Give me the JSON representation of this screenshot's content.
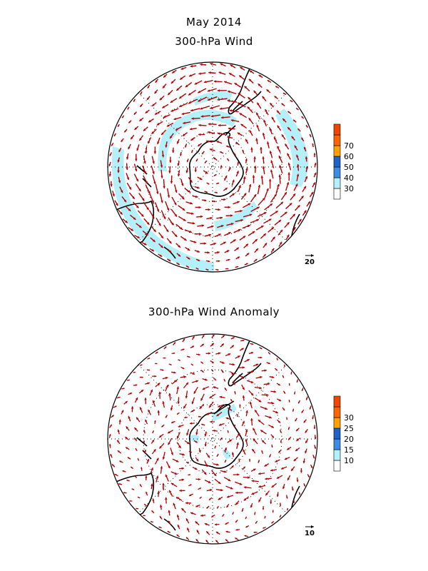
{
  "title": "May 2014",
  "top_map": {
    "subtitle": "300-hPa Wind",
    "reference_vector": "20",
    "legend": {
      "ticks": [
        "30",
        "40",
        "50",
        "60",
        "70"
      ],
      "colors": [
        "#ffffff",
        "#b4f0fa",
        "#3c8ce6",
        "#1e64c8",
        "#ffa000",
        "#ff6400",
        "#f04600"
      ]
    }
  },
  "bottom_map": {
    "subtitle": "300-hPa Wind Anomaly",
    "reference_vector": "10",
    "legend": {
      "ticks": [
        "10",
        "15",
        "20",
        "25",
        "30"
      ],
      "colors": [
        "#ffffff",
        "#b4f0fa",
        "#3c8ce6",
        "#1e64c8",
        "#ffa000",
        "#ff6400",
        "#f04600"
      ]
    }
  },
  "colors": {
    "vector": "#b40000",
    "shade": "#b4f0fa",
    "coast": "#000000",
    "grid": "#000000"
  }
}
